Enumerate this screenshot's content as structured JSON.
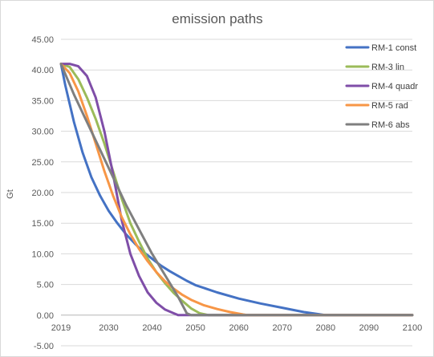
{
  "chart_data": {
    "type": "line",
    "title": "emission paths",
    "xlabel": "",
    "ylabel": "Gt",
    "xlim": [
      2019,
      2100
    ],
    "ylim": [
      -5,
      45
    ],
    "x_ticks": [
      "2019",
      "2030",
      "2040",
      "2050",
      "2060",
      "2070",
      "2080",
      "2090",
      "2100"
    ],
    "x_tick_values": [
      2019,
      2030,
      2040,
      2050,
      2060,
      2070,
      2080,
      2090,
      2100
    ],
    "y_ticks": [
      "45.00",
      "40.00",
      "35.00",
      "30.00",
      "25.00",
      "20.00",
      "15.00",
      "10.00",
      "5.00",
      "0.00",
      "-5.00"
    ],
    "y_tick_values": [
      45,
      40,
      35,
      30,
      25,
      20,
      15,
      10,
      5,
      0,
      -5
    ],
    "grid": true,
    "legend_position": "right",
    "series": [
      {
        "name": "RM-1 const",
        "color": "#4472c4",
        "x": [
          2019,
          2020,
          2022,
          2024,
          2026,
          2028,
          2030,
          2032,
          2034,
          2036,
          2038,
          2040,
          2042,
          2044,
          2046,
          2048,
          2050,
          2055,
          2060,
          2065,
          2070,
          2075,
          2080,
          2100
        ],
        "y": [
          41,
          37.5,
          31.5,
          26.5,
          22.5,
          19.5,
          17,
          15,
          13.2,
          11.7,
          10.3,
          9.2,
          8.1,
          7.2,
          6.4,
          5.6,
          4.9,
          3.7,
          2.7,
          1.9,
          1.2,
          0.5,
          0,
          0
        ]
      },
      {
        "name": "RM-3 lin",
        "color": "#9bbb59",
        "x": [
          2019,
          2021,
          2023,
          2025,
          2027,
          2029,
          2031,
          2033,
          2035,
          2037,
          2039,
          2041,
          2043,
          2045,
          2047,
          2049,
          2051,
          2053,
          2100
        ],
        "y": [
          41,
          40.5,
          38.5,
          35.5,
          32,
          28,
          23.5,
          19,
          15,
          12,
          9.2,
          7,
          5.2,
          3.6,
          2.3,
          1.1,
          0.3,
          0,
          0
        ]
      },
      {
        "name": "RM-4 quadr",
        "color": "#7f4ea8",
        "x": [
          2019,
          2021,
          2023,
          2025,
          2027,
          2029,
          2031,
          2033,
          2035,
          2037,
          2039,
          2041,
          2043,
          2045,
          2046,
          2047,
          2100
        ],
        "y": [
          41,
          41,
          40.6,
          39,
          35.5,
          30,
          23,
          15.5,
          10,
          6.4,
          3.7,
          2.0,
          0.9,
          0.3,
          0,
          0,
          0
        ]
      },
      {
        "name": "RM-5 rad",
        "color": "#f79646",
        "x": [
          2019,
          2021,
          2023,
          2025,
          2027,
          2029,
          2031,
          2033,
          2035,
          2037,
          2039,
          2041,
          2043,
          2045,
          2047,
          2049,
          2052,
          2055,
          2058,
          2061,
          2062,
          2100
        ],
        "y": [
          41,
          39.5,
          36.5,
          32.5,
          28,
          23.5,
          19.5,
          16,
          13.2,
          10.8,
          8.8,
          7.0,
          5.5,
          4.3,
          3.3,
          2.5,
          1.6,
          1.0,
          0.5,
          0.1,
          0,
          0
        ]
      },
      {
        "name": "RM-6 abs",
        "color": "#7f7f7f",
        "x": [
          2019,
          2022,
          2025,
          2028,
          2031,
          2034,
          2037,
          2040,
          2043,
          2046,
          2048,
          2049,
          2100
        ],
        "y": [
          41,
          36,
          31.5,
          27,
          22.5,
          18,
          14,
          10,
          6.5,
          3,
          0.3,
          0,
          0
        ]
      }
    ]
  }
}
